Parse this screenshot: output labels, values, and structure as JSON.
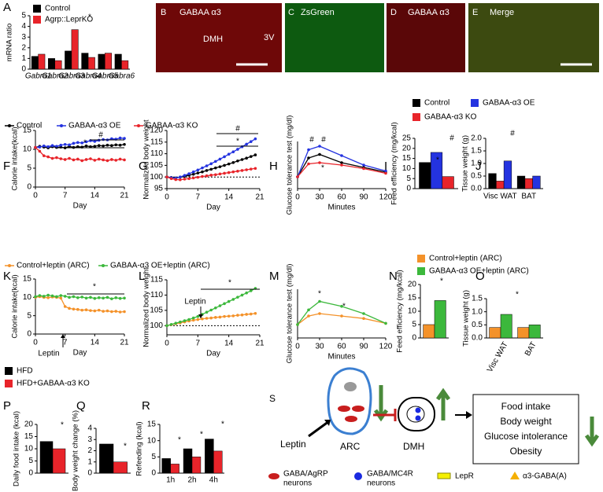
{
  "chart_data": [
    {
      "type": "bar",
      "panel": "A",
      "ylabel": "mRNA ratio",
      "categories": [
        "Gabra1",
        "Gabra2",
        "Gabra3",
        "Gabra4",
        "Gabra5",
        "Gabra6"
      ],
      "series": [
        {
          "name": "Control",
          "color": "#000000",
          "values": [
            1.2,
            1.0,
            1.7,
            1.5,
            1.4,
            1.4
          ]
        },
        {
          "name": "Agrp::LeprKO",
          "color": "#e8242a",
          "values": [
            1.4,
            0.8,
            3.7,
            1.1,
            1.5,
            0.8
          ]
        }
      ],
      "ylim": [
        0,
        5
      ],
      "yticks": [
        0,
        1,
        2,
        3,
        4,
        5
      ],
      "annotations": [
        "*"
      ]
    },
    {
      "type": "line",
      "panel": "F",
      "ylabel": "Calorie intake(kcal)",
      "xlabel": "Day",
      "x": [
        0,
        1,
        2,
        3,
        4,
        5,
        6,
        7,
        8,
        9,
        10,
        11,
        12,
        13,
        14,
        15,
        16,
        17,
        18,
        19,
        20,
        21
      ],
      "series": [
        {
          "name": "Control",
          "color": "#000000",
          "values": [
            10.5,
            10.8,
            10.6,
            10.4,
            10.7,
            10.5,
            10.6,
            10.4,
            10.8,
            10.5,
            10.7,
            10.6,
            10.9,
            10.7,
            10.8,
            11,
            10.9,
            11.1,
            11,
            11.2,
            11.1,
            11.3
          ]
        },
        {
          "name": "GABAA-α3 OE",
          "color": "#2433e0",
          "values": [
            10.5,
            10.6,
            10.9,
            10.7,
            11,
            10.8,
            11.1,
            11.3,
            11.2,
            11.6,
            11.8,
            11.7,
            12,
            12.3,
            12.1,
            12.4,
            12.6,
            12.5,
            12.8,
            12.7,
            13,
            12.9
          ]
        },
        {
          "name": "GABAA-α3 KO",
          "color": "#e8242a",
          "values": [
            10.5,
            9.5,
            8.3,
            8,
            7.6,
            7.8,
            7.5,
            7.3,
            7.6,
            7.2,
            7.4,
            7,
            7.3,
            7.5,
            7.1,
            7.4,
            7.2,
            7,
            7.3,
            7.1,
            7.4,
            7.2
          ]
        }
      ],
      "xlim": [
        0,
        21
      ],
      "xticks": [
        0,
        7,
        14,
        21
      ],
      "ylim": [
        0,
        15
      ],
      "yticks": [
        0,
        5,
        10,
        15
      ],
      "annotations": [
        "*",
        "#"
      ]
    },
    {
      "type": "line",
      "panel": "G",
      "ylabel": "Normalized body weight",
      "xlabel": "Day",
      "x": [
        0,
        1,
        2,
        3,
        4,
        5,
        6,
        7,
        8,
        9,
        10,
        11,
        12,
        13,
        14,
        15,
        16,
        17,
        18,
        19,
        20
      ],
      "series": [
        {
          "color": "#000000",
          "values": [
            100,
            99.8,
            99.6,
            99.9,
            100.3,
            100.8,
            101.2,
            101.7,
            102.2,
            102.8,
            103.3,
            103.9,
            104.4,
            105,
            105.6,
            106.2,
            106.9,
            107.5,
            108.1,
            108.8,
            109.5
          ]
        },
        {
          "color": "#2433e0",
          "values": [
            100,
            99.7,
            99.5,
            100,
            100.7,
            101.4,
            102.2,
            103,
            103.9,
            104.8,
            105.7,
            106.7,
            107.7,
            108.7,
            109.8,
            110.8,
            111.9,
            113,
            114.1,
            115.2,
            116.4
          ]
        },
        {
          "color": "#e8242a",
          "values": [
            100,
            99.3,
            98.9,
            98.8,
            99.1,
            99.3,
            99.6,
            99.9,
            100.2,
            100.5,
            100.8,
            101,
            101.3,
            101.6,
            101.9,
            102.2,
            102.5,
            102.8,
            103.1,
            103.4,
            103.7
          ]
        }
      ],
      "xlim": [
        0,
        21
      ],
      "xticks": [
        0,
        7,
        14,
        21
      ],
      "ylim": [
        95,
        120
      ],
      "yticks": [
        95,
        100,
        105,
        110,
        115,
        120
      ],
      "reference_line": 100,
      "annotations": [
        "#",
        "*"
      ]
    },
    {
      "type": "line",
      "panel": "H",
      "ylabel": "Glucose tolerance test (mg/dl)",
      "xlabel": "Minutes",
      "x": [
        0,
        15,
        30,
        60,
        90,
        120
      ],
      "series": [
        {
          "color": "#000000",
          "values": [
            100,
            260,
            290,
            220,
            180,
            140
          ]
        },
        {
          "color": "#2433e0",
          "values": [
            100,
            330,
            360,
            280,
            200,
            150
          ]
        },
        {
          "color": "#e8242a",
          "values": [
            100,
            210,
            220,
            200,
            170,
            130
          ]
        }
      ],
      "xlim": [
        0,
        120
      ],
      "xticks": [
        0,
        30,
        60,
        90,
        120
      ],
      "ylim": [
        0,
        400
      ],
      "annotations": [
        "#",
        "#",
        "*"
      ]
    },
    {
      "type": "bar",
      "panel": "I",
      "ylabel": "Feed efficiency (mg/kcal)",
      "series": [
        {
          "name": "Control",
          "color": "#000000",
          "values": [
            13
          ]
        },
        {
          "name": "GABAA-α3 OE",
          "color": "#2433e0",
          "values": [
            18
          ]
        },
        {
          "name": "GABAA-α3 KO",
          "color": "#e8242a",
          "values": [
            6
          ]
        }
      ],
      "ylim": [
        0,
        25
      ],
      "yticks": [
        0,
        5,
        10,
        15,
        20,
        25
      ],
      "annotations": [
        "*",
        "#"
      ]
    },
    {
      "type": "bar",
      "panel": "J",
      "ylabel": "Tissue weight (g)",
      "categories": [
        "Visc WAT",
        "BAT"
      ],
      "series": [
        {
          "color": "#000000",
          "values": [
            0.6,
            0.5
          ]
        },
        {
          "color": "#e8242a",
          "values": [
            0.3,
            0.4
          ]
        },
        {
          "color": "#2433e0",
          "values": [
            1.1,
            0.5
          ]
        }
      ],
      "ylim": [
        0,
        2
      ],
      "yticks": [
        {
          "value": 0,
          "label": "0.0"
        },
        {
          "value": 0.5,
          "label": "0.5"
        },
        {
          "value": 1,
          "label": "1.0"
        },
        {
          "value": 1.5,
          "label": "1.5"
        },
        {
          "value": 2,
          "label": "2.0"
        }
      ],
      "annotations": [
        "#"
      ]
    },
    {
      "type": "line",
      "panel": "K",
      "ylabel": "Calorie intake(kcal)",
      "xlabel": "Day",
      "x": [
        0,
        1,
        2,
        3,
        4,
        5,
        6,
        7,
        8,
        9,
        10,
        11,
        12,
        13,
        14,
        15,
        16,
        17,
        18,
        19,
        20,
        21
      ],
      "series": [
        {
          "name": "Control+leptin (ARC)",
          "color": "#f4922a",
          "values": [
            10,
            10.2,
            10,
            9.9,
            10.1,
            10,
            9.8,
            7.5,
            7,
            6.8,
            6.7,
            6.5,
            6.6,
            6.4,
            6.3,
            6.5,
            6.2,
            6.3,
            6.1,
            6.2,
            6,
            6.1
          ]
        },
        {
          "name": "GABAA-α3 OE+leptin (ARC)",
          "color": "#3cb83c",
          "values": [
            10.2,
            10.5,
            10.3,
            10.6,
            10.4,
            10.2,
            10.5,
            10.3,
            10,
            10.2,
            9.9,
            10.1,
            9.8,
            10,
            9.7,
            9.9,
            9.8,
            10,
            9.6,
            9.9,
            9.7,
            9.8
          ]
        }
      ],
      "xlim": [
        0,
        21
      ],
      "xticks": [
        0,
        7,
        14,
        21
      ],
      "ylim": [
        0,
        15
      ],
      "yticks": [
        0,
        5,
        10,
        15
      ],
      "annotations": [
        "*",
        "Leptin"
      ]
    },
    {
      "type": "line",
      "panel": "L",
      "ylabel": "Normalized body weight",
      "xlabel": "Day",
      "x": [
        0,
        1,
        2,
        3,
        4,
        5,
        6,
        7,
        8,
        9,
        10,
        11,
        12,
        13,
        14,
        15,
        16,
        17,
        18,
        19,
        20
      ],
      "series": [
        {
          "color": "#f4922a",
          "values": [
            100,
            100.3,
            100.6,
            100.9,
            101.2,
            101.5,
            101.8,
            102,
            102.2,
            102.4,
            102.5,
            102.7,
            102.8,
            103,
            103.1,
            103.2,
            103.4,
            103.5,
            103.7,
            103.8,
            104
          ]
        },
        {
          "color": "#3cb83c",
          "values": [
            100,
            100.4,
            100.8,
            101.2,
            101.6,
            102,
            102.5,
            103,
            103.7,
            104.4,
            105.1,
            105.8,
            106.5,
            107.2,
            107.9,
            108.6,
            109.3,
            110,
            110.7,
            111.4,
            112.2
          ]
        }
      ],
      "xlim": [
        0,
        21
      ],
      "xticks": [
        0,
        7,
        14,
        21
      ],
      "ylim": [
        97,
        115
      ],
      "yticks": [
        100,
        105,
        110,
        115
      ],
      "reference_line": 100,
      "annotations": [
        "*",
        "Leptin"
      ]
    },
    {
      "type": "line",
      "panel": "M",
      "ylabel": "Glucose tolerance test (mg/dl)",
      "xlabel": "Minutes",
      "x": [
        0,
        15,
        30,
        60,
        90,
        120
      ],
      "series": [
        {
          "color": "#f4922a",
          "values": [
            110,
            180,
            200,
            180,
            160,
            120
          ]
        },
        {
          "color": "#3cb83c",
          "values": [
            110,
            230,
            300,
            260,
            200,
            120
          ]
        }
      ],
      "xlim": [
        0,
        120
      ],
      "xticks": [
        0,
        30,
        60,
        90,
        120
      ],
      "ylim": [
        0,
        400
      ],
      "annotations": [
        "*",
        "*"
      ]
    },
    {
      "type": "bar",
      "panel": "N",
      "ylabel": "Feed efficiency (mg/kcal)",
      "series": [
        {
          "name": "Control+leptin (ARC)",
          "color": "#f4922a",
          "values": [
            5
          ]
        },
        {
          "name": "GABAA-α3 OE+leptin (ARC)",
          "color": "#3cb83c",
          "values": [
            14
          ]
        }
      ],
      "ylim": [
        0,
        20
      ],
      "yticks": [
        0,
        5,
        10,
        15,
        20
      ],
      "annotations": [
        "*"
      ]
    },
    {
      "type": "bar",
      "panel": "O",
      "ylabel": "Tissue weight (g)",
      "categories": [
        "Visc WAT",
        "BAT"
      ],
      "series": [
        {
          "color": "#f4922a",
          "values": [
            0.4,
            0.4
          ]
        },
        {
          "color": "#3cb83c",
          "values": [
            0.9,
            0.5
          ]
        }
      ],
      "ylim": [
        0,
        1.5
      ],
      "yticks": [
        {
          "value": 0,
          "label": "0.0"
        },
        {
          "value": 0.5,
          "label": "0.5"
        },
        {
          "value": 1,
          "label": "1.0"
        },
        {
          "value": 1.5,
          "label": "1.5"
        }
      ],
      "annotations": [
        "*"
      ]
    },
    {
      "type": "bar",
      "panel": "P",
      "ylabel": "Daily food intake (kcal)",
      "series": [
        {
          "name": "HFD",
          "color": "#000000",
          "values": [
            13
          ]
        },
        {
          "name": "HFD+GABAA-α3 KO",
          "color": "#e8242a",
          "values": [
            10
          ]
        }
      ],
      "ylim": [
        0,
        20
      ],
      "yticks": [
        0,
        5,
        10,
        15,
        20
      ],
      "annotations": [
        "*"
      ]
    },
    {
      "type": "bar",
      "panel": "Q",
      "ylabel": "Body weight change (%)",
      "series": [
        {
          "color": "#000000",
          "values": [
            2.6
          ]
        },
        {
          "color": "#e8242a",
          "values": [
            1.0
          ]
        }
      ],
      "ylim": [
        0,
        4
      ],
      "yticks": [
        0,
        1,
        2,
        3,
        4
      ],
      "annotations": [
        "*"
      ]
    },
    {
      "type": "bar",
      "panel": "R",
      "ylabel": "Refeeding (kcal)",
      "categories": [
        "1h",
        "2h",
        "4h"
      ],
      "series": [
        {
          "color": "#000000",
          "values": [
            4.5,
            7.5,
            10.5
          ]
        },
        {
          "color": "#e8242a",
          "values": [
            2.8,
            5,
            6.8
          ]
        }
      ],
      "ylim": [
        0,
        15
      ],
      "yticks": [
        0,
        5,
        10,
        15
      ],
      "annotations": [
        "*",
        "*",
        "*"
      ]
    }
  ],
  "images": [
    {
      "panel": "B",
      "labels": [
        "GABAA α3",
        "DMH",
        "3V"
      ]
    },
    {
      "panel": "C",
      "labels": [
        "ZsGreen"
      ]
    },
    {
      "panel": "D",
      "labels": [
        "GABAA α3"
      ]
    },
    {
      "panel": "E",
      "labels": [
        "Merge"
      ]
    }
  ],
  "diagram": {
    "panel": "S",
    "input": "Leptin",
    "nodes": [
      "ARC",
      "DMH"
    ],
    "outcomes": [
      "Food intake",
      "Body weight",
      "Glucose intolerance",
      "Obesity"
    ],
    "legend": [
      {
        "lines": [
          "GABA/AgRP",
          "neurons"
        ]
      },
      {
        "lines": [
          "GABA/MC4R",
          "neurons"
        ]
      },
      {
        "lines": [
          "LepR"
        ]
      },
      {
        "lines": [
          "α3-GABA(A)"
        ]
      }
    ]
  }
}
